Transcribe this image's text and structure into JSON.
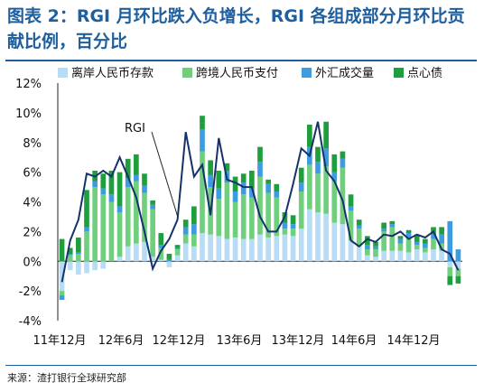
{
  "title": "图表 2：RGI 月环比跌入负增长，RGI 各组成部分月环比贡献比例，百分比",
  "source": "来源：渣打银行全球研究部",
  "chart_data": {
    "type": "bar",
    "stacked": true,
    "title": "",
    "xlabel": "",
    "ylabel": "",
    "ylim": [
      -4,
      12
    ],
    "yticks": [
      "-4%",
      "-2%",
      "0%",
      "2%",
      "4%",
      "6%",
      "8%",
      "10%",
      "12%"
    ],
    "xtick_labels": [
      "11年12月",
      "12年6月",
      "12年12月",
      "13年6月",
      "13年12月",
      "14年6月",
      "14年12月"
    ],
    "legend_position": "top",
    "annotation": "RGI",
    "series": [
      {
        "name": "离岸人民币存款",
        "color": "#b8dcf5",
        "values": [
          -2.0,
          -0.6,
          -0.9,
          -0.8,
          -0.6,
          -0.5,
          0.0,
          0.3,
          1.0,
          1.2,
          1.3,
          0.3,
          0.1,
          -0.4,
          0.4,
          1.2,
          1.0,
          1.9,
          1.8,
          1.7,
          1.5,
          1.6,
          1.5,
          1.5,
          1.8,
          1.6,
          1.7,
          1.8,
          1.7,
          2.2,
          3.5,
          3.3,
          3.2,
          2.6,
          2.5,
          1.4,
          1.0,
          0.4,
          0.3,
          0.7,
          0.7,
          0.7,
          0.6,
          0.8,
          0.6,
          0.8,
          0.7,
          -0.4,
          -0.5
        ]
      },
      {
        "name": "跨境人民币支付",
        "color": "#6fcf7c",
        "values": [
          -0.3,
          0.4,
          0.5,
          2.0,
          5.0,
          4.5,
          4.0,
          3.0,
          4.0,
          4.2,
          3.3,
          3.2,
          0.8,
          0.0,
          0.4,
          0.6,
          0.8,
          5.5,
          3.2,
          2.5,
          3.8,
          2.4,
          3.0,
          2.8,
          3.9,
          3.0,
          2.6,
          0.4,
          0.5,
          2.5,
          3.0,
          2.6,
          3.2,
          2.8,
          3.8,
          2.0,
          1.2,
          0.4,
          0.5,
          1.3,
          1.6,
          0.5,
          1.0,
          0.3,
          0.3,
          0.7,
          0.5,
          -0.6,
          -0.5
        ]
      },
      {
        "name": "外汇成交量",
        "color": "#3d9be0",
        "values": [
          -0.3,
          0.1,
          0.1,
          0.3,
          0.4,
          0.4,
          0.5,
          0.4,
          0.6,
          0.4,
          0.5,
          0.3,
          0.2,
          0.1,
          0.1,
          0.5,
          0.7,
          1.5,
          0.8,
          0.7,
          0.8,
          0.7,
          0.8,
          0.6,
          1.0,
          0.6,
          0.4,
          0.4,
          0.3,
          0.6,
          1.2,
          0.8,
          1.2,
          0.6,
          0.6,
          0.3,
          0.2,
          0.3,
          0.2,
          0.2,
          0.2,
          0.3,
          0.3,
          0.2,
          0.3,
          0.3,
          0.6,
          2.7,
          0.8
        ]
      },
      {
        "name": "点心债",
        "color": "#1e9e3c",
        "values": [
          1.5,
          0.4,
          1.0,
          2.5,
          0.7,
          1.0,
          1.6,
          2.3,
          1.3,
          1.4,
          0.8,
          0.3,
          0.8,
          0.4,
          0.2,
          0.5,
          1.2,
          0.9,
          1.0,
          1.2,
          0.5,
          1.0,
          0.6,
          1.2,
          1.0,
          0.3,
          0.5,
          0.7,
          0.6,
          1.0,
          1.5,
          1.0,
          1.8,
          1.2,
          0.5,
          0.8,
          0.4,
          0.6,
          0.3,
          0.4,
          0.2,
          0.2,
          0.2,
          0.5,
          0.3,
          0.5,
          0.5,
          -0.6,
          -0.5
        ]
      }
    ],
    "rgi": {
      "name": "RGI",
      "values": [
        -1.4,
        1.4,
        2.8,
        5.9,
        5.7,
        6.1,
        5.7,
        7.0,
        5.7,
        4.3,
        2.0,
        -0.5,
        0.7,
        1.5,
        2.8,
        8.7,
        5.7,
        6.5,
        3.1,
        8.3,
        5.5,
        5.3,
        5.0,
        5.0,
        3.0,
        2.0,
        2.0,
        3.0,
        5.2,
        7.6,
        7.1,
        9.4,
        6.1,
        5.4,
        4.1,
        1.4,
        1.0,
        1.5,
        1.3,
        1.8,
        1.7,
        2.0,
        1.5,
        1.8,
        1.6,
        2.0,
        0.8,
        0.5,
        -0.6
      ]
    }
  }
}
